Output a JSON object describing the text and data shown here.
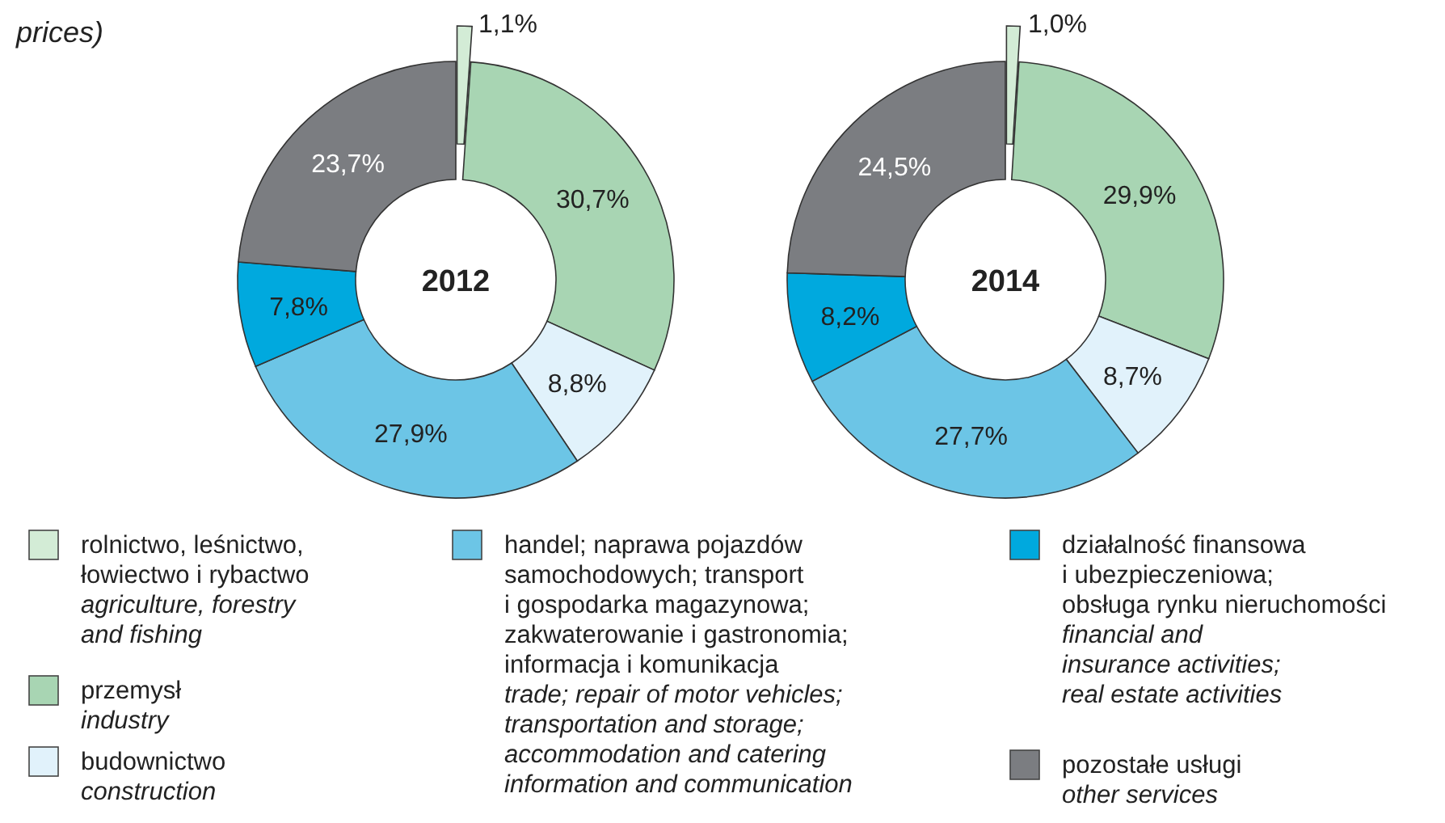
{
  "chart_data": [
    {
      "type": "donut",
      "title": "2012",
      "annotations": [
        "prices)"
      ],
      "legend": "bottom",
      "categories": [
        "rolnictwo, leśnictwo,\nłowiectwo i rybactwo\nagriculture, forestry\nand fishing",
        "przemysł\nindustry",
        "budownictwo\nconstruction",
        "handel; naprawa pojazdów\nsamochodowych; transport\ni gospodarka magazynowa;\nzakwaterowanie i gastronomia;\ninformacja i komunikacja\ntrade; repair of motor vehicles;\ntransportation and storage;\naccommodation and catering\ninformation and communication",
        "działalność finansowa\ni ubezpieczeniowa;\nobsługa rynku nieruchomości\nfinancial and\ninsurance activities;\nreal estate activities",
        "pozostałe usługi\nother services"
      ],
      "values": [
        1.1,
        30.7,
        8.8,
        27.9,
        7.8,
        23.7
      ],
      "value_labels": [
        "1,1%",
        "30,7%",
        "8,8%",
        "27,9%",
        "7,8%",
        "23,7%"
      ],
      "colors": [
        "#d3ecd6",
        "#a8d5b3",
        "#e1f2fb",
        "#6cc5e6",
        "#00a9de",
        "#7b7d81"
      ]
    },
    {
      "type": "donut",
      "title": "2014",
      "categories": [
        null,
        null,
        null,
        null,
        null,
        null
      ],
      "values": [
        1.0,
        29.9,
        8.7,
        27.7,
        8.2,
        24.5
      ],
      "value_labels": [
        "1,0%",
        "29,9%",
        "8,7%",
        "27,7%",
        "8,2%",
        "24,5%"
      ],
      "colors": [
        "#d3ecd6",
        "#a8d5b3",
        "#e1f2fb",
        "#6cc5e6",
        "#00a9de",
        "#7b7d81"
      ]
    }
  ]
}
